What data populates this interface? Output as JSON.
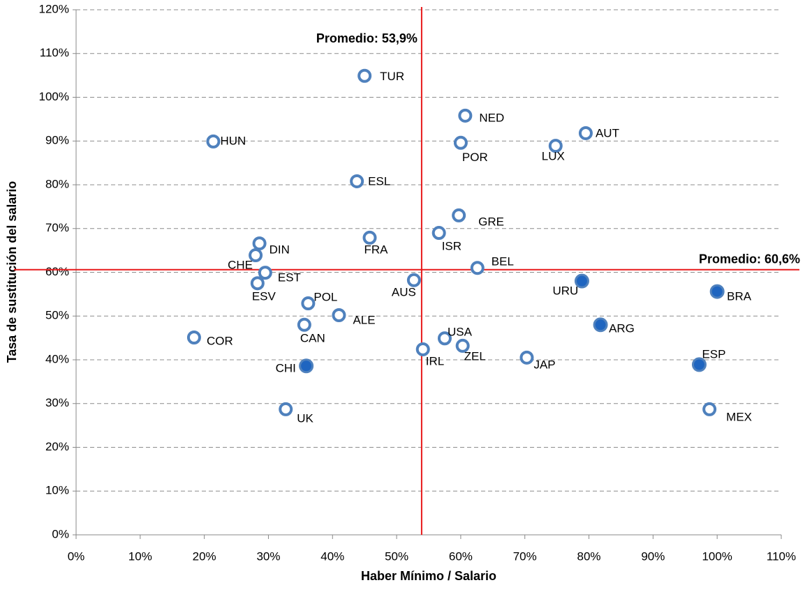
{
  "chart_data": {
    "type": "scatter",
    "x_label": "Haber Mínimo / Salario",
    "y_label": "Tasa de sustitución del salario",
    "xlim": [
      0,
      110
    ],
    "ylim": [
      0,
      120
    ],
    "xticks": [
      {
        "value": 0,
        "label": "0%"
      },
      {
        "value": 10,
        "label": "10%"
      },
      {
        "value": 20,
        "label": "20%"
      },
      {
        "value": 30,
        "label": "30%"
      },
      {
        "value": 40,
        "label": "40%"
      },
      {
        "value": 50,
        "label": "50%"
      },
      {
        "value": 60,
        "label": "60%"
      },
      {
        "value": 70,
        "label": "70%"
      },
      {
        "value": 80,
        "label": "80%"
      },
      {
        "value": 90,
        "label": "90%"
      },
      {
        "value": 100,
        "label": "100%"
      },
      {
        "value": 110,
        "label": "110%"
      }
    ],
    "yticks": [
      {
        "value": 0,
        "label": "0%"
      },
      {
        "value": 10,
        "label": "10%"
      },
      {
        "value": 20,
        "label": "20%"
      },
      {
        "value": 30,
        "label": "30%"
      },
      {
        "value": 40,
        "label": "40%"
      },
      {
        "value": 50,
        "label": "50%"
      },
      {
        "value": 60,
        "label": "60%"
      },
      {
        "value": 70,
        "label": "70%"
      },
      {
        "value": 80,
        "label": "80%"
      },
      {
        "value": 90,
        "label": "90%"
      },
      {
        "value": 100,
        "label": "100%"
      },
      {
        "value": 110,
        "label": "110%"
      },
      {
        "value": 120,
        "label": "120%"
      }
    ],
    "grid": "y",
    "series": [
      {
        "color": "#4f81bd",
        "marker": "ring",
        "labels": [
          "TUR",
          "NED",
          "POR",
          "AUT",
          "LUX",
          "HUN",
          "ESL",
          "GRE",
          "ISR",
          "FRA",
          "DIN",
          "CHE",
          "EST",
          "ESV",
          "BEL",
          "AUS",
          "POL",
          "ALE",
          "CAN",
          "COR",
          "USA",
          "ZEL",
          "IRL",
          "JAP",
          "UK",
          "MEX"
        ],
        "x": [
          45.0,
          60.7,
          60.0,
          79.5,
          74.8,
          21.4,
          43.8,
          59.7,
          56.6,
          45.8,
          28.6,
          28.0,
          29.5,
          28.3,
          62.6,
          52.7,
          36.2,
          41.0,
          35.6,
          18.4,
          57.5,
          60.3,
          54.1,
          70.3,
          32.7,
          98.8
        ],
        "values": [
          104.9,
          95.8,
          89.6,
          91.8,
          88.9,
          89.9,
          80.8,
          73.0,
          69.0,
          67.9,
          66.6,
          63.9,
          59.9,
          57.5,
          61.0,
          58.2,
          52.9,
          50.2,
          48.0,
          45.1,
          44.9,
          43.2,
          42.4,
          40.5,
          28.7,
          28.7
        ]
      },
      {
        "color": "#4f81bd",
        "marker": "filled",
        "labels": [
          "URU",
          "BRA",
          "ARG",
          "ESP",
          "CHI"
        ],
        "x": [
          78.9,
          100.0,
          81.8,
          97.2,
          35.9
        ],
        "values": [
          58.0,
          55.6,
          48.0,
          38.9,
          38.6
        ]
      }
    ],
    "ref_lines": [
      {
        "axis": "x",
        "value": 53.9,
        "label": "Promedio: 53,9%",
        "color": "#e8191a"
      },
      {
        "axis": "y",
        "value": 60.6,
        "label": "Promedio: 60,6%",
        "color": "#e8191a"
      }
    ]
  }
}
